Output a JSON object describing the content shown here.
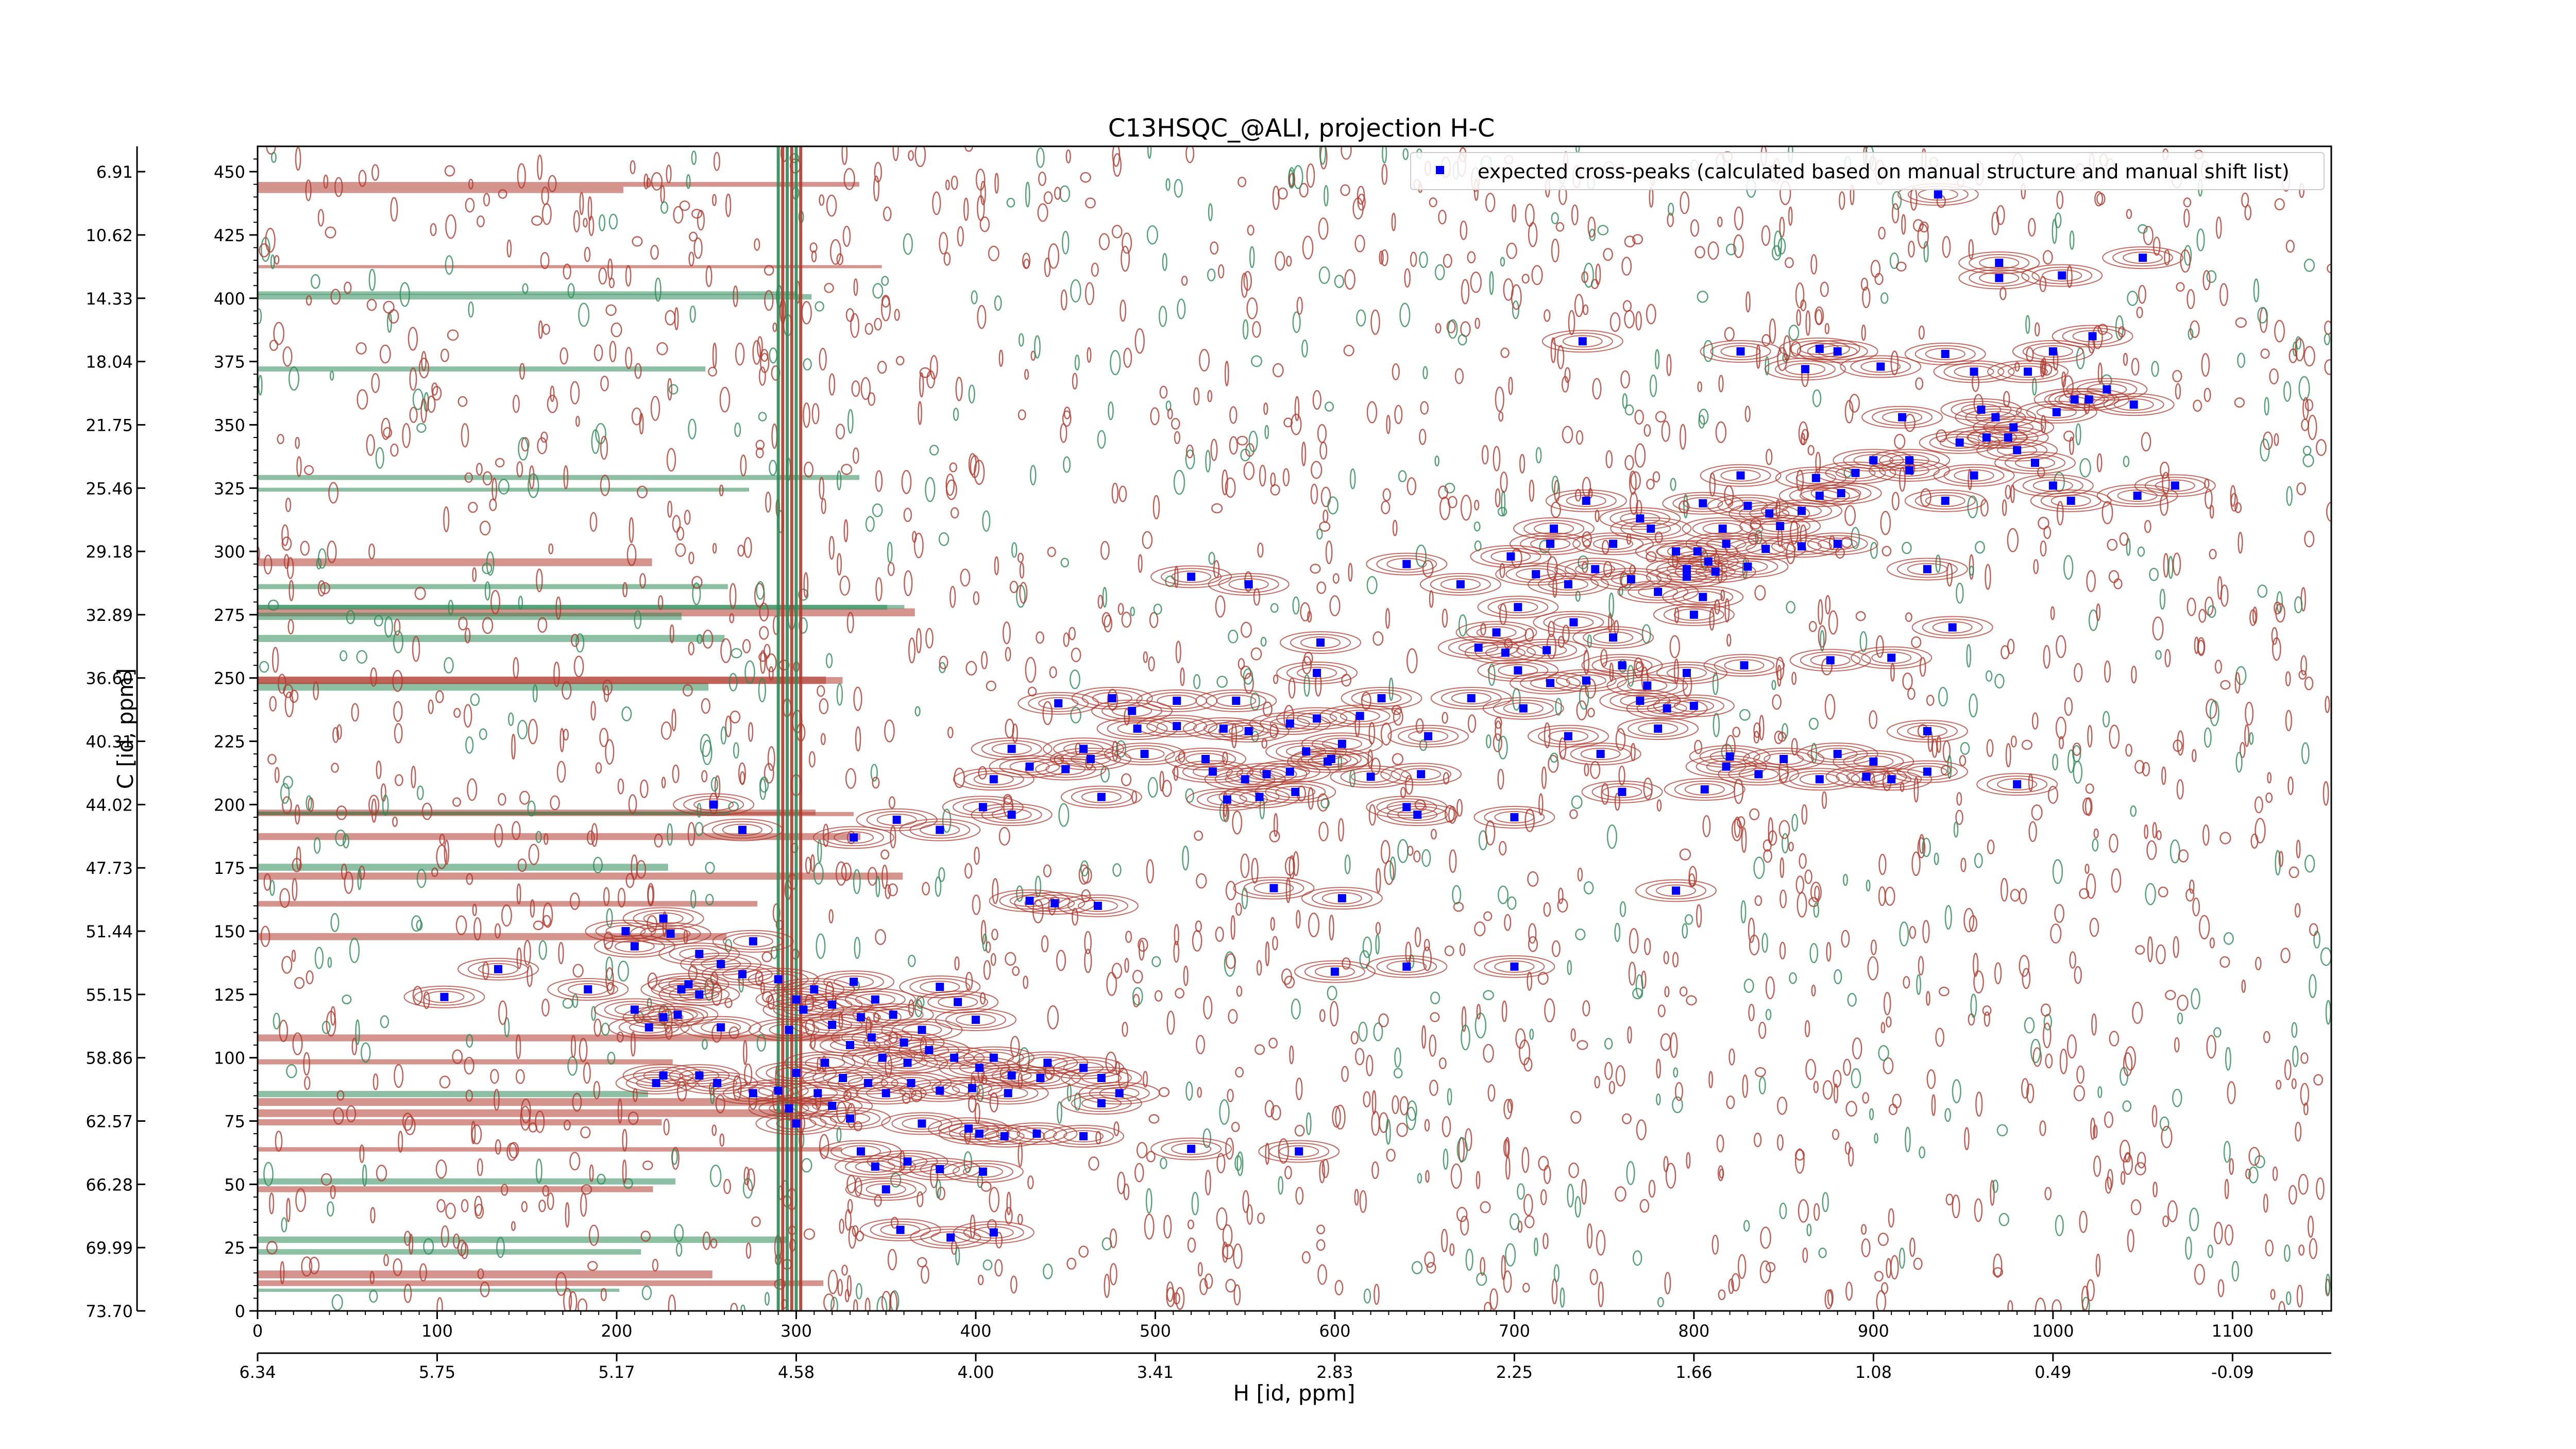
{
  "chart_data": {
    "type": "scatter",
    "title": "C13HSQC_@ALI, projection H-C",
    "xlabel": "H [id, ppm]",
    "ylabel": "C [id, ppm]",
    "x_index_ticks": [
      0,
      100,
      200,
      300,
      400,
      500,
      600,
      700,
      800,
      900,
      1000,
      1100
    ],
    "x_ppm_ticks": [
      "6.34",
      "5.75",
      "5.17",
      "4.58",
      "4.00",
      "3.41",
      "2.83",
      "2.25",
      "1.66",
      "1.08",
      "0.49",
      "-0.09"
    ],
    "y_index_ticks": [
      0,
      25,
      50,
      75,
      100,
      125,
      150,
      175,
      200,
      225,
      250,
      275,
      300,
      325,
      350,
      375,
      400,
      425,
      450
    ],
    "y_ppm_ticks": [
      "73.70",
      "69.99",
      "66.28",
      "62.57",
      "58.86",
      "55.15",
      "51.44",
      "47.73",
      "44.02",
      "40.31",
      "36.60",
      "32.89",
      "29.18",
      "25.46",
      "21.75",
      "18.04",
      "14.33",
      "10.62",
      "6.91"
    ],
    "xlim": [
      0,
      1155
    ],
    "ylim": [
      0,
      460
    ],
    "legend": {
      "label": "expected cross-peaks (calculated based on manual structure and manual shift list)",
      "position": "upper right",
      "marker_color": "#0000ff"
    },
    "colors": {
      "positive_contours": "#b03a2e",
      "negative_contours": "#2e8b57",
      "peaks": "#0000ff"
    },
    "series": [
      {
        "name": "expected cross-peaks (calculated based on manual structure and manual shift list)",
        "points": [
          [
            936,
            441
          ],
          [
            970,
            414
          ],
          [
            970,
            408
          ],
          [
            1005,
            409
          ],
          [
            1050,
            416
          ],
          [
            738,
            383
          ],
          [
            1022,
            385
          ],
          [
            826,
            379
          ],
          [
            870,
            380
          ],
          [
            880,
            379
          ],
          [
            862,
            372
          ],
          [
            1000,
            379
          ],
          [
            940,
            378
          ],
          [
            904,
            373
          ],
          [
            956,
            371
          ],
          [
            986,
            371
          ],
          [
            1020,
            360
          ],
          [
            1030,
            364
          ],
          [
            1045,
            358
          ],
          [
            960,
            356
          ],
          [
            968,
            353
          ],
          [
            916,
            353
          ],
          [
            1002,
            355
          ],
          [
            1012,
            360
          ],
          [
            975,
            345
          ],
          [
            978,
            349
          ],
          [
            948,
            343
          ],
          [
            963,
            345
          ],
          [
            980,
            340
          ],
          [
            990,
            335
          ],
          [
            920,
            336
          ],
          [
            900,
            336
          ],
          [
            920,
            332
          ],
          [
            1000,
            326
          ],
          [
            1010,
            320
          ],
          [
            1068,
            326
          ],
          [
            1047,
            322
          ],
          [
            956,
            330
          ],
          [
            940,
            320
          ],
          [
            868,
            329
          ],
          [
            890,
            331
          ],
          [
            870,
            322
          ],
          [
            882,
            323
          ],
          [
            860,
            316
          ],
          [
            848,
            310
          ],
          [
            826,
            330
          ],
          [
            805,
            319
          ],
          [
            830,
            318
          ],
          [
            842,
            315
          ],
          [
            816,
            309
          ],
          [
            818,
            303
          ],
          [
            802,
            300
          ],
          [
            790,
            300
          ],
          [
            776,
            309
          ],
          [
            770,
            313
          ],
          [
            755,
            303
          ],
          [
            740,
            320
          ],
          [
            722,
            309
          ],
          [
            720,
            303
          ],
          [
            698,
            298
          ],
          [
            712,
            291
          ],
          [
            796,
            293
          ],
          [
            808,
            296
          ],
          [
            840,
            301
          ],
          [
            860,
            302
          ],
          [
            880,
            303
          ],
          [
            830,
            294
          ],
          [
            812,
            292
          ],
          [
            805,
            282
          ],
          [
            800,
            275
          ],
          [
            796,
            290
          ],
          [
            780,
            284
          ],
          [
            765,
            289
          ],
          [
            745,
            293
          ],
          [
            730,
            287
          ],
          [
            670,
            287
          ],
          [
            702,
            278
          ],
          [
            690,
            268
          ],
          [
            733,
            272
          ],
          [
            755,
            266
          ],
          [
            718,
            261
          ],
          [
            695,
            260
          ],
          [
            680,
            262
          ],
          [
            640,
            295
          ],
          [
            520,
            290
          ],
          [
            552,
            287
          ],
          [
            930,
            293
          ],
          [
            944,
            270
          ],
          [
            760,
            255
          ],
          [
            774,
            247
          ],
          [
            740,
            249
          ],
          [
            720,
            248
          ],
          [
            702,
            253
          ],
          [
            910,
            258
          ],
          [
            876,
            257
          ],
          [
            828,
            255
          ],
          [
            796,
            252
          ],
          [
            705,
            238
          ],
          [
            676,
            242
          ],
          [
            592,
            264
          ],
          [
            590,
            252
          ],
          [
            545,
            241
          ],
          [
            512,
            241
          ],
          [
            476,
            242
          ],
          [
            487,
            237
          ],
          [
            575,
            232
          ],
          [
            552,
            229
          ],
          [
            538,
            230
          ],
          [
            512,
            231
          ],
          [
            490,
            230
          ],
          [
            528,
            218
          ],
          [
            494,
            220
          ],
          [
            460,
            222
          ],
          [
            450,
            214
          ],
          [
            614,
            235
          ],
          [
            626,
            242
          ],
          [
            590,
            234
          ],
          [
            604,
            224
          ],
          [
            598,
            218
          ],
          [
            584,
            221
          ],
          [
            575,
            213
          ],
          [
            562,
            212
          ],
          [
            550,
            210
          ],
          [
            578,
            205
          ],
          [
            558,
            203
          ],
          [
            540,
            202
          ],
          [
            532,
            213
          ],
          [
            446,
            240
          ],
          [
            464,
            218
          ],
          [
            470,
            203
          ],
          [
            648,
            212
          ],
          [
            646,
            196
          ],
          [
            652,
            227
          ],
          [
            620,
            211
          ],
          [
            596,
            217
          ],
          [
            930,
            229
          ],
          [
            780,
            230
          ],
          [
            785,
            238
          ],
          [
            800,
            239
          ],
          [
            770,
            241
          ],
          [
            730,
            227
          ],
          [
            748,
            220
          ],
          [
            836,
            212
          ],
          [
            870,
            210
          ],
          [
            896,
            211
          ],
          [
            980,
            208
          ],
          [
            930,
            213
          ],
          [
            910,
            210
          ],
          [
            880,
            220
          ],
          [
            900,
            217
          ],
          [
            850,
            218
          ],
          [
            820,
            219
          ],
          [
            700,
            195
          ],
          [
            640,
            199
          ],
          [
            760,
            205
          ],
          [
            806,
            206
          ],
          [
            818,
            215
          ],
          [
            430,
            215
          ],
          [
            420,
            222
          ],
          [
            410,
            210
          ],
          [
            404,
            199
          ],
          [
            420,
            196
          ],
          [
            380,
            190
          ],
          [
            356,
            194
          ],
          [
            332,
            187
          ],
          [
            270,
            190
          ],
          [
            254,
            200
          ],
          [
            566,
            167
          ],
          [
            604,
            163
          ],
          [
            790,
            166
          ],
          [
            600,
            134
          ],
          [
            700,
            136
          ],
          [
            640,
            136
          ],
          [
            468,
            160
          ],
          [
            444,
            161
          ],
          [
            430,
            162
          ],
          [
            226,
            155
          ],
          [
            205,
            150
          ],
          [
            210,
            144
          ],
          [
            230,
            149
          ],
          [
            246,
            141
          ],
          [
            276,
            146
          ],
          [
            258,
            137
          ],
          [
            270,
            133
          ],
          [
            240,
            129
          ],
          [
            236,
            127
          ],
          [
            246,
            125
          ],
          [
            226,
            116
          ],
          [
            218,
            112
          ],
          [
            258,
            112
          ],
          [
            234,
            117
          ],
          [
            210,
            119
          ],
          [
            184,
            127
          ],
          [
            104,
            124
          ],
          [
            134,
            135
          ],
          [
            290,
            131
          ],
          [
            300,
            123
          ],
          [
            310,
            127
          ],
          [
            320,
            121
          ],
          [
            332,
            130
          ],
          [
            344,
            123
          ],
          [
            354,
            117
          ],
          [
            380,
            128
          ],
          [
            390,
            122
          ],
          [
            400,
            115
          ],
          [
            370,
            111
          ],
          [
            360,
            106
          ],
          [
            342,
            108
          ],
          [
            336,
            116
          ],
          [
            320,
            113
          ],
          [
            304,
            119
          ],
          [
            296,
            111
          ],
          [
            330,
            105
          ],
          [
            348,
            100
          ],
          [
            362,
            98
          ],
          [
            374,
            103
          ],
          [
            388,
            100
          ],
          [
            402,
            96
          ],
          [
            410,
            100
          ],
          [
            420,
            93
          ],
          [
            440,
            98
          ],
          [
            460,
            96
          ],
          [
            470,
            92
          ],
          [
            436,
            92
          ],
          [
            418,
            86
          ],
          [
            398,
            88
          ],
          [
            380,
            87
          ],
          [
            364,
            90
          ],
          [
            350,
            86
          ],
          [
            340,
            90
          ],
          [
            326,
            92
          ],
          [
            316,
            98
          ],
          [
            300,
            94
          ],
          [
            290,
            87
          ],
          [
            312,
            86
          ],
          [
            320,
            81
          ],
          [
            330,
            76
          ],
          [
            300,
            74
          ],
          [
            296,
            80
          ],
          [
            276,
            86
          ],
          [
            256,
            90
          ],
          [
            246,
            93
          ],
          [
            226,
            93
          ],
          [
            222,
            90
          ],
          [
            370,
            74
          ],
          [
            396,
            72
          ],
          [
            402,
            70
          ],
          [
            416,
            69
          ],
          [
            434,
            70
          ],
          [
            460,
            69
          ],
          [
            520,
            64
          ],
          [
            580,
            63
          ],
          [
            470,
            82
          ],
          [
            480,
            86
          ],
          [
            380,
            56
          ],
          [
            404,
            55
          ],
          [
            358,
            32
          ],
          [
            386,
            29
          ],
          [
            410,
            31
          ],
          [
            350,
            48
          ],
          [
            362,
            59
          ],
          [
            336,
            63
          ],
          [
            344,
            57
          ]
        ]
      }
    ]
  }
}
